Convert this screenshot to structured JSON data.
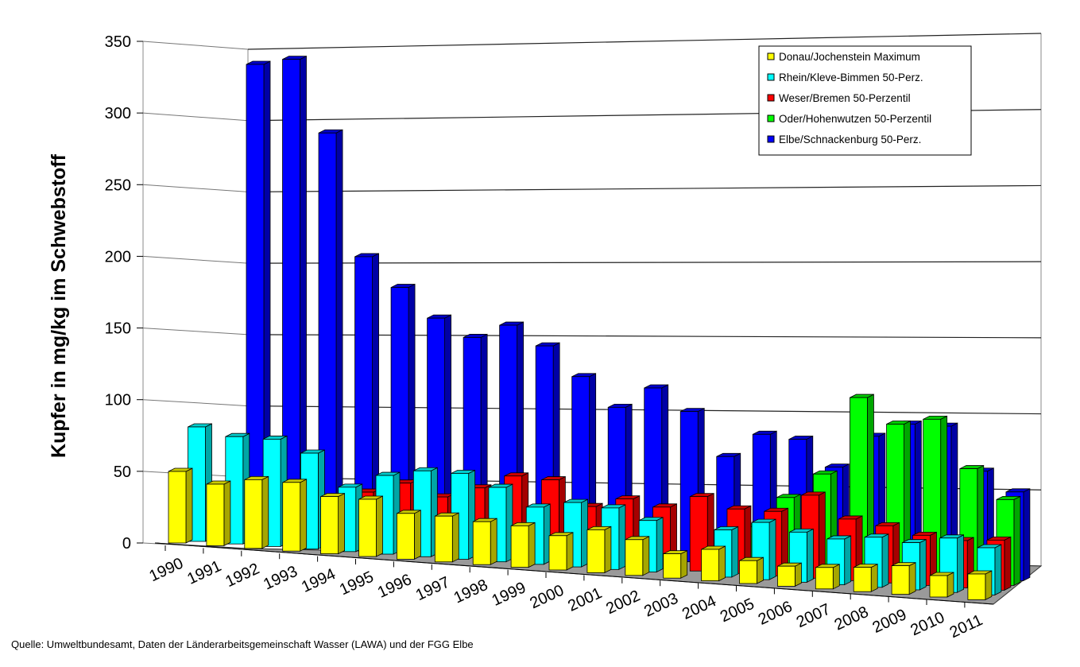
{
  "chart_data": {
    "type": "bar",
    "variant": "3d-clustered-depth",
    "ylabel": "Kupfer in mg/kg im Schwebstoff",
    "ylim": [
      0,
      350
    ],
    "yticks": [
      0,
      50,
      100,
      150,
      200,
      250,
      300,
      350
    ],
    "grid": true,
    "legend_position": "top-right",
    "categories": [
      "1990",
      "1991",
      "1992",
      "1993",
      "1994",
      "1995",
      "1996",
      "1997",
      "1998",
      "1999",
      "2000",
      "2001",
      "2002",
      "2003",
      "2004",
      "2005",
      "2006",
      "2007",
      "2008",
      "2009",
      "2010",
      "2011"
    ],
    "series": [
      {
        "name": "Donau/Jochenstein Maximum",
        "color": "#ffff00",
        "values": [
          50,
          43,
          48,
          48,
          40,
          40,
          32,
          32,
          30,
          29,
          24,
          30,
          25,
          17,
          22,
          16,
          14,
          15,
          17,
          20,
          15,
          18
        ]
      },
      {
        "name": "Rhein/Kleve-Bimmen 50-Perz.",
        "color": "#00ffff",
        "values": [
          80,
          75,
          75,
          67,
          45,
          55,
          60,
          60,
          52,
          40,
          45,
          43,
          36,
          null,
          33,
          40,
          35,
          32,
          35,
          33,
          38,
          33
        ]
      },
      {
        "name": "Weser/Bremen 50-Perzentil",
        "color": "#ff0000",
        "values": [
          null,
          null,
          null,
          null,
          40,
          48,
          40,
          48,
          58,
          57,
          40,
          47,
          43,
          52,
          45,
          45,
          58,
          43,
          40,
          35,
          33,
          35
        ]
      },
      {
        "name": "Oder/Hohenwutzen 50-Perzentil",
        "color": "#00ff00",
        "values": [
          null,
          null,
          null,
          null,
          null,
          null,
          null,
          null,
          null,
          null,
          null,
          null,
          null,
          null,
          30,
          52,
          70,
          125,
          108,
          113,
          80,
          60
        ]
      },
      {
        "name": "Elbe/Schnackenburg 50-Perz.",
        "color": "#0000ff",
        "values": [
          330,
          335,
          285,
          200,
          180,
          160,
          148,
          158,
          145,
          125,
          105,
          120,
          105,
          75,
          92,
          90,
          72,
          95,
          105,
          105,
          75,
          62
        ]
      }
    ]
  },
  "source": "Quelle: Umweltbundesamt, Daten der Länderarbeitsgemeinschaft Wasser (LAWA) und der FGG Elbe"
}
